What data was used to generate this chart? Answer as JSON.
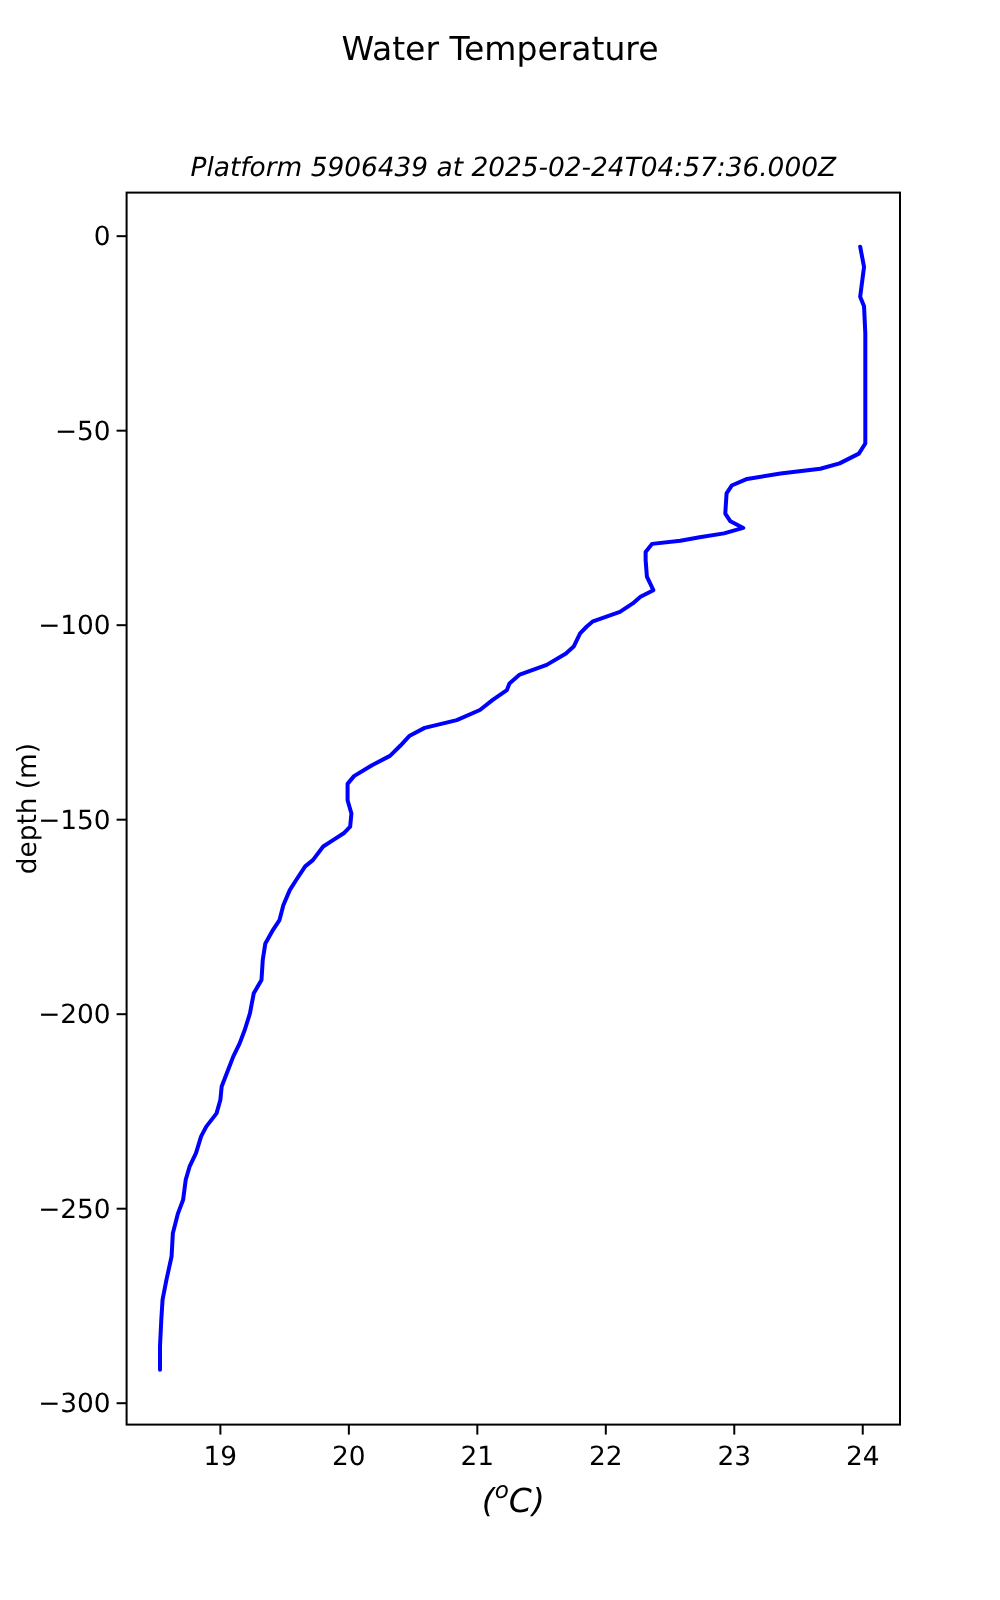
{
  "chart_data": {
    "type": "line",
    "title": "Water Temperature",
    "subtitle": "Platform 5906439 at 2025-02-24T04:57:36.000Z",
    "xlabel": "($^{o}$C)",
    "ylabel": "depth (m)",
    "xlim": [
      18.27,
      24.29
    ],
    "xticks": [
      19,
      20,
      21,
      22,
      23,
      24
    ],
    "ylim": [
      -305.5,
      11.2
    ],
    "yticks": [
      -300,
      -250,
      -200,
      -150,
      -100,
      -50,
      0
    ],
    "series": [
      {
        "color": "#0000ff",
        "x": [
          23.98,
          24.01,
          23.98,
          24.01,
          24.02,
          24.02,
          24.02,
          23.97,
          23.82,
          23.67,
          23.36,
          23.1,
          22.98,
          22.94,
          22.93,
          22.97,
          23.07,
          22.92,
          22.73,
          22.58,
          22.36,
          22.31,
          22.31,
          22.32,
          22.37,
          22.27,
          22.21,
          22.11,
          21.9,
          21.85,
          21.8,
          21.75,
          21.69,
          21.54,
          21.33,
          21.25,
          21.23,
          21.12,
          21.02,
          20.84,
          20.59,
          20.47,
          20.4,
          20.32,
          20.18,
          20.04,
          19.99,
          19.99,
          20.02,
          20.01,
          19.96,
          19.88,
          19.8,
          19.72,
          19.66,
          19.59,
          19.54,
          19.49,
          19.46,
          19.41,
          19.35,
          19.33,
          19.32,
          19.26,
          19.23,
          19.19,
          19.15,
          19.1,
          19.05,
          19.01,
          19.0,
          18.97,
          18.89,
          18.85,
          18.81,
          18.76,
          18.73,
          18.71,
          18.67,
          18.63,
          18.62,
          18.58,
          18.55,
          18.54,
          18.53,
          18.53
        ],
        "values": [
          -2.7,
          -7.9,
          -15.6,
          -18,
          -25,
          -42,
          -53.3,
          -55.9,
          -58.4,
          -59.8,
          -61,
          -62.4,
          -64.1,
          -66.1,
          -71.3,
          -73.3,
          -75,
          -76.4,
          -77.4,
          -78.3,
          -79.1,
          -81.2,
          -83.3,
          -87.5,
          -91,
          -92.7,
          -94.4,
          -96.6,
          -99,
          -100.4,
          -102.1,
          -105.5,
          -107.3,
          -110.2,
          -112.7,
          -115,
          -116.7,
          -119.2,
          -121.8,
          -124.4,
          -126.4,
          -128.5,
          -131,
          -133.6,
          -136,
          -138.8,
          -140.8,
          -145,
          -148.4,
          -151.8,
          -153.5,
          -155.2,
          -156.9,
          -160.4,
          -162,
          -165.5,
          -168.1,
          -172,
          -175.8,
          -178.3,
          -181.8,
          -186,
          -191.2,
          -194.6,
          -199.8,
          -204,
          -207.5,
          -210.9,
          -215.2,
          -218.6,
          -222,
          -225.5,
          -228.9,
          -231.4,
          -235.7,
          -239.2,
          -242.6,
          -247.7,
          -251.2,
          -256.3,
          -262.3,
          -268.3,
          -273.4,
          -278.6,
          -285.4,
          -291.4
        ]
      }
    ]
  }
}
